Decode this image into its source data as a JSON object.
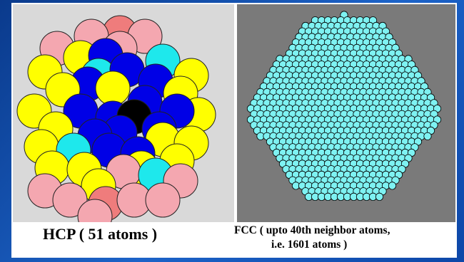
{
  "left_panel": {
    "caption": "HCP ( 51 atoms )",
    "colors": {
      "pink": "#f4a7b0",
      "salmon": "#ef7c7c",
      "yellow": "#ffff00",
      "cyan": "#1ee8ec",
      "blue": "#0000e6",
      "black": "#000000",
      "background": "#d9d9d9"
    }
  },
  "right_panel": {
    "caption_line1": "FCC ( upto 40th neighbor atoms,",
    "caption_line2": "i.e. 1601 atoms )",
    "colors": {
      "atom": "#7ef2f2",
      "outline": "#000000",
      "background": "#7a7a7a"
    }
  },
  "slide": {
    "background": "#1c63c8"
  }
}
